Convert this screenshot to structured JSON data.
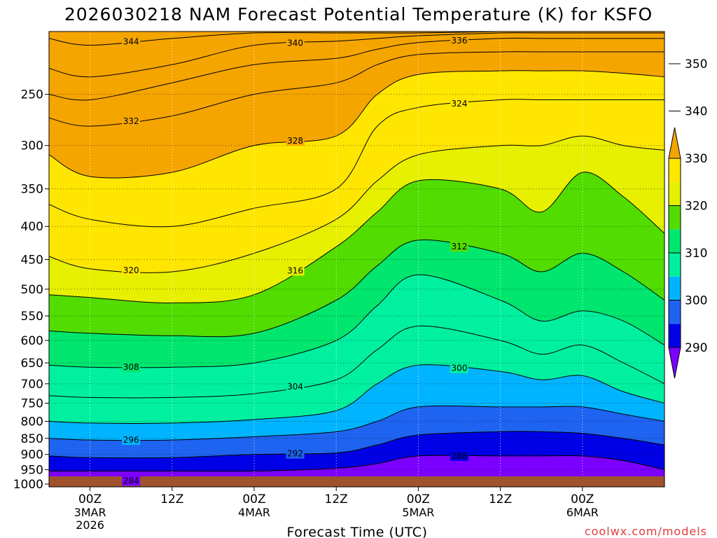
{
  "chart_data": {
    "type": "contour",
    "title": "2026030218 NAM Forecast Potential Temperature (K) for KSFO",
    "xlabel": "Forecast Time (UTC)",
    "ylabel": "",
    "y_axis": "pressure (hPa), log scale, inverted",
    "ylim": [
      1010,
      200
    ],
    "yticks": [
      "250",
      "300",
      "350",
      "400",
      "450",
      "500",
      "550",
      "600",
      "650",
      "700",
      "750",
      "800",
      "850",
      "900",
      "950",
      "1000"
    ],
    "x_axis": "forecast hour",
    "xlim": [
      -6,
      84
    ],
    "xticks": [
      {
        "label": "00Z",
        "sub": [
          "3MAR",
          "2026"
        ]
      },
      {
        "label": "12Z",
        "sub": []
      },
      {
        "label": "00Z",
        "sub": [
          "4MAR"
        ]
      },
      {
        "label": "12Z",
        "sub": []
      },
      {
        "label": "00Z",
        "sub": [
          "5MAR"
        ]
      },
      {
        "label": "12Z",
        "sub": []
      },
      {
        "label": "00Z",
        "sub": [
          "6MAR"
        ]
      }
    ],
    "contour_interval": 2,
    "contour_labels": [
      "344",
      "340",
      "336",
      "332",
      "328",
      "324",
      "320",
      "316",
      "312",
      "308",
      "304",
      "300",
      "296",
      "292",
      "288",
      "284"
    ],
    "colorbar": {
      "ticks": [
        "290",
        "300",
        "310",
        "320",
        "330",
        "340",
        "350"
      ],
      "colors": [
        "#7b00ff",
        "#0000e6",
        "#1e64f0",
        "#00b4ff",
        "#00f0a0",
        "#00e66e",
        "#52dc00",
        "#e6f000",
        "#ffe600",
        "#f5a500"
      ]
    },
    "profile_hours": [
      -6,
      0,
      12,
      24,
      36,
      42,
      48,
      60,
      66,
      72,
      78,
      84
    ],
    "profile_p_at_theta": {
      "284": [
        990,
        990,
        988,
        985,
        985,
        985,
        985,
        985,
        985,
        985,
        985,
        985
      ],
      "288": [
        955,
        955,
        955,
        955,
        945,
        930,
        905,
        905,
        905,
        905,
        920,
        950
      ],
      "292": [
        905,
        910,
        910,
        900,
        895,
        870,
        840,
        830,
        830,
        835,
        850,
        870
      ],
      "296": [
        850,
        855,
        855,
        845,
        830,
        800,
        760,
        760,
        760,
        760,
        780,
        800
      ],
      "300": [
        800,
        805,
        805,
        795,
        770,
        700,
        655,
        670,
        690,
        680,
        720,
        750
      ],
      "304": [
        730,
        735,
        735,
        725,
        690,
        620,
        570,
        600,
        630,
        610,
        650,
        700
      ],
      "308": [
        655,
        660,
        660,
        650,
        600,
        530,
        475,
        520,
        560,
        540,
        560,
        610
      ],
      "312": [
        580,
        585,
        590,
        585,
        520,
        460,
        420,
        440,
        470,
        440,
        470,
        520
      ],
      "316": [
        510,
        515,
        525,
        510,
        430,
        380,
        340,
        350,
        380,
        330,
        360,
        410
      ],
      "320": [
        445,
        465,
        470,
        440,
        390,
        340,
        310,
        300,
        300,
        290,
        300,
        305
      ],
      "324": [
        370,
        390,
        400,
        375,
        350,
        280,
        262,
        255,
        255,
        255,
        255,
        255
      ],
      "328": [
        310,
        335,
        330,
        300,
        290,
        250,
        233,
        230,
        230,
        230,
        232,
        235
      ],
      "332": [
        272,
        280,
        270,
        250,
        240,
        225,
        217,
        215,
        215,
        215,
        215,
        215
      ],
      "336": [
        250,
        255,
        240,
        225,
        220,
        213,
        208,
        205,
        205,
        205,
        205,
        205
      ],
      "340": [
        228,
        235,
        225,
        210,
        207,
        205,
        203,
        201,
        201,
        201,
        201,
        201
      ],
      "344": [
        205,
        210,
        205,
        201,
        201,
        201,
        201,
        200,
        200,
        200,
        200,
        200
      ]
    },
    "grid": true,
    "legend": "colorbar right",
    "surface_band_color": "#a0522d",
    "credit": "coolwx.com/models"
  }
}
